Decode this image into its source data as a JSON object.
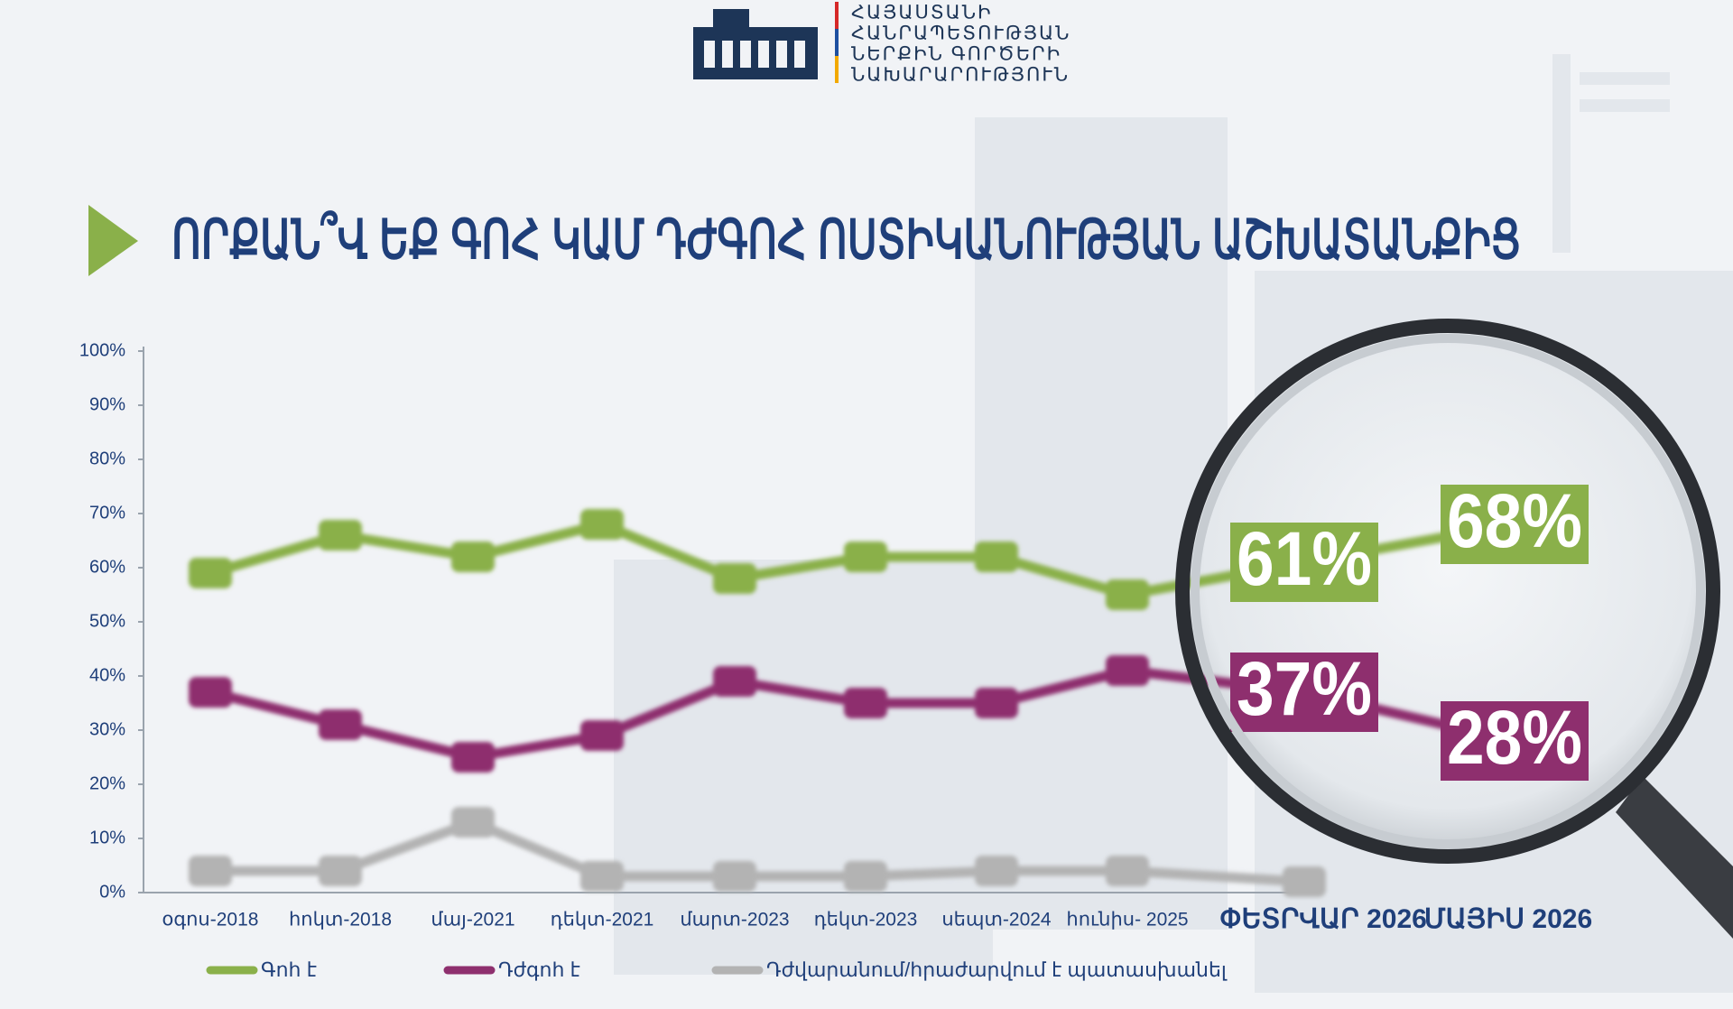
{
  "logo_text": [
    "ՀԱՅԱՍՏԱՆԻ",
    "ՀԱՆՐԱՊԵՏՈՒԹՅԱՆ",
    "ՆԵՐՔԻՆ ԳՈՐԾԵՐԻ",
    "ՆԱԽԱՐԱՐՈՒԹՅՈՒՆ"
  ],
  "chart_data": {
    "type": "line",
    "title": "ՈՐՔԱՆ՞Վ ԵՔ ԳՈՀ ԿԱՄ ԴԺԳՈՀ ՈՍՏԻԿԱՆՈՒԹՅԱՆ  ԱՇԽԱՏԱՆՔԻՑ",
    "categories": [
      "օգոս-2018",
      "հոկտ-2018",
      "մայ-2021",
      "դեկտ-2021",
      "մարտ-2023",
      "դեկտ-2023",
      "սեպտ-2024",
      "հունիս- 2025",
      "ՓԵՏՐՎԱՐ 2026",
      "ՄԱՅԻՍ 2026"
    ],
    "series": [
      {
        "name": "Գոհ է",
        "color": "#8ab04a",
        "values": [
          59,
          66,
          62,
          68,
          58,
          62,
          62,
          55,
          61,
          68
        ],
        "value_labels": [
          null,
          null,
          null,
          null,
          null,
          null,
          null,
          null,
          "61%",
          "68%"
        ]
      },
      {
        "name": "Դժգոհ է",
        "color": "#8e2f6e",
        "values": [
          37,
          31,
          25,
          29,
          39,
          35,
          35,
          41,
          37,
          28
        ],
        "value_labels": [
          null,
          null,
          null,
          null,
          null,
          null,
          null,
          null,
          "37%",
          "28%"
        ]
      },
      {
        "name": "Դժվարանում/հրաժարվում է պատասխանել",
        "color": "#b3b3b3",
        "values": [
          4,
          4,
          13,
          3,
          3,
          3,
          4,
          4,
          2,
          null
        ]
      }
    ],
    "ylim": [
      0,
      100
    ],
    "yticks": [
      {
        "value": 0,
        "label": "0%"
      },
      {
        "value": 10,
        "label": "10%"
      },
      {
        "value": 20,
        "label": "20%"
      },
      {
        "value": 30,
        "label": "30%"
      },
      {
        "value": 40,
        "label": "40%"
      },
      {
        "value": 50,
        "label": "50%"
      },
      {
        "value": 60,
        "label": "60%"
      },
      {
        "value": 70,
        "label": "70%"
      },
      {
        "value": 80,
        "label": "80%"
      },
      {
        "value": 90,
        "label": "90%"
      },
      {
        "value": 100,
        "label": "100%"
      }
    ],
    "legend": "bottom"
  }
}
